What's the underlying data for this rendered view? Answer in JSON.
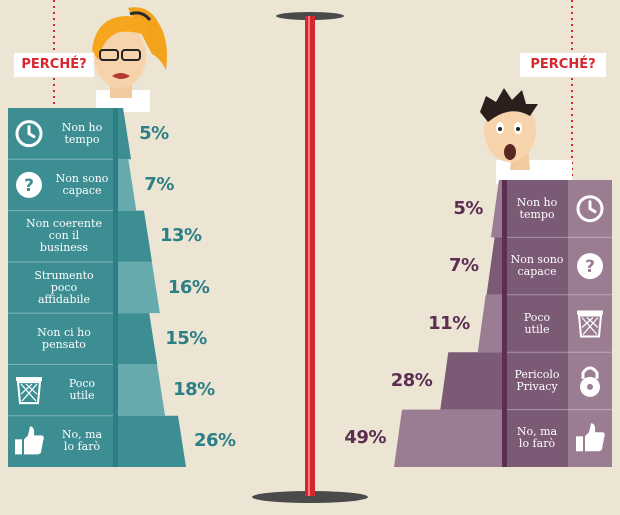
{
  "colors": {
    "teal": "#3c8e93",
    "teal_dark": "#2d7f86",
    "teal_light": "#66aaae",
    "purple": "#7b5a76",
    "purple_dark": "#5b2e52",
    "purple_light": "#9a7c93",
    "red": "#d8262e",
    "background": "#ece5d4"
  },
  "left_panel": {
    "tag": "PERCHÉ?"
  },
  "right_panel": {
    "tag": "PERCHÉ?"
  },
  "chart_data": [
    {
      "type": "bar",
      "orientation": "horizontal",
      "categories": [
        "Non ho tempo",
        "Non sono capace",
        "Non coerente con il business",
        "Strumento poco affidabile",
        "Non ci ho pensato",
        "Poco utile",
        "No, ma lo farò"
      ],
      "category_lines": [
        [
          "Non ho",
          "tempo"
        ],
        [
          "Non sono",
          "capace"
        ],
        [
          "Non coerente",
          "con il",
          "business"
        ],
        [
          "Strumento",
          "poco",
          "affidabile"
        ],
        [
          "Non ci ho",
          "pensato"
        ],
        [
          "Poco",
          "utile"
        ],
        [
          "No, ma",
          "lo farò"
        ]
      ],
      "icons": [
        "clock-icon",
        "question-icon",
        "",
        "",
        "",
        "trash-icon",
        "thumbs-up-icon"
      ],
      "values": [
        5,
        7,
        13,
        16,
        15,
        18,
        26
      ],
      "labels": [
        "5%",
        "7%",
        "13%",
        "16%",
        "15%",
        "18%",
        "26%"
      ],
      "unit": "%"
    },
    {
      "type": "bar",
      "orientation": "horizontal",
      "categories": [
        "Non ho tempo",
        "Non sono capace",
        "Poco utile",
        "Pericolo Privacy",
        "No, ma lo farò"
      ],
      "category_lines": [
        [
          "Non ho",
          "tempo"
        ],
        [
          "Non sono",
          "capace"
        ],
        [
          "Poco",
          "utile"
        ],
        [
          "Pericolo",
          "Privacy"
        ],
        [
          "No, ma",
          "lo farò"
        ]
      ],
      "icons": [
        "clock-icon",
        "question-icon",
        "trash-icon",
        "lock-icon",
        "thumbs-up-icon"
      ],
      "values": [
        5,
        7,
        11,
        28,
        49
      ],
      "labels": [
        "5%",
        "7%",
        "11%",
        "28%",
        "49%"
      ],
      "unit": "%"
    }
  ]
}
